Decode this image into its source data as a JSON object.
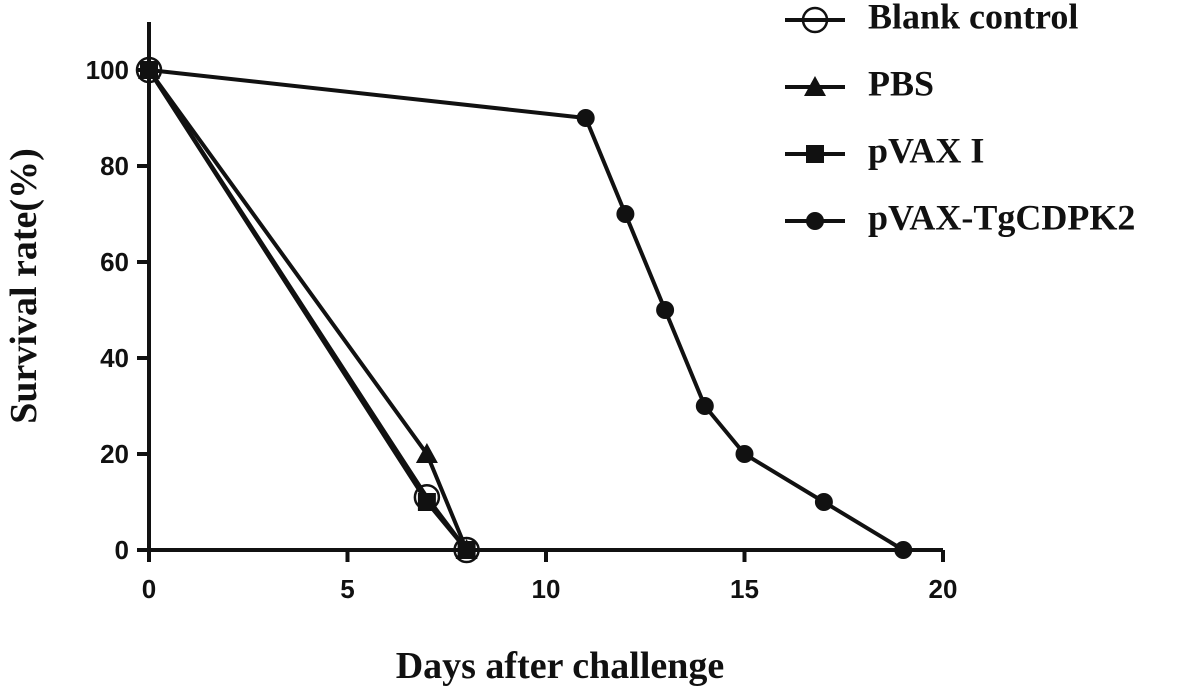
{
  "chart_data": {
    "type": "line",
    "x_label": "Days after challenge",
    "y_label": "Survival rate(%)",
    "xlim": [
      0,
      20
    ],
    "xticks": [
      0,
      5,
      10,
      15,
      20
    ],
    "ylim": [
      0,
      110
    ],
    "yticks": [
      0,
      20,
      40,
      60,
      80,
      100
    ],
    "legend": "top-right",
    "series": [
      {
        "name": "Blank control",
        "color": "#111111",
        "marker": "open-circle",
        "x": [
          0,
          7,
          8
        ],
        "values": [
          100,
          11,
          0
        ]
      },
      {
        "name": "PBS",
        "color": "#111111",
        "marker": "triangle",
        "x": [
          0,
          7,
          8
        ],
        "values": [
          100,
          20,
          0
        ]
      },
      {
        "name": "pVAX I",
        "color": "#111111",
        "marker": "square",
        "x": [
          0,
          7,
          8
        ],
        "values": [
          100,
          10,
          0
        ]
      },
      {
        "name": "pVAX-TgCDPK2",
        "color": "#111111",
        "marker": "circle",
        "x": [
          0,
          11,
          12,
          13,
          14,
          15,
          17,
          19
        ],
        "values": [
          100,
          90,
          70,
          50,
          30,
          20,
          10,
          0
        ]
      }
    ]
  }
}
